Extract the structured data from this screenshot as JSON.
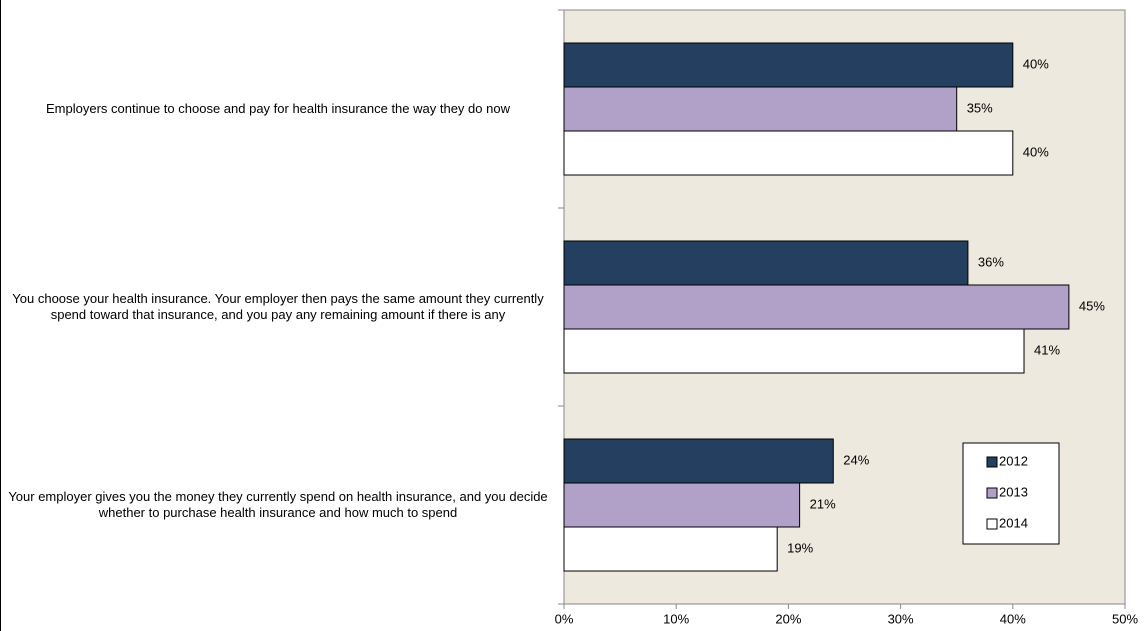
{
  "chart_data": {
    "type": "bar",
    "orientation": "horizontal",
    "categories": [
      "Employers continue to choose and pay for health insurance the way they do now",
      "You choose your health insurance. Your employer then pays the same amount they currently spend toward that insurance, and you pay any remaining amount if there is any",
      "Your employer gives you the money they currently spend on health insurance, and you decide whether to purchase health insurance and how much to spend"
    ],
    "series": [
      {
        "name": "2012",
        "color": "#253f60",
        "values": [
          40,
          36,
          24
        ],
        "value_labels": [
          "40%",
          "36%",
          "24%"
        ]
      },
      {
        "name": "2013",
        "color": "#b1a0c7",
        "values": [
          35,
          45,
          21
        ],
        "value_labels": [
          "35%",
          "45%",
          "21%"
        ]
      },
      {
        "name": "2014",
        "color": "#ffffff",
        "values": [
          40,
          41,
          19
        ],
        "value_labels": [
          "40%",
          "41%",
          "19%"
        ]
      }
    ],
    "xlim": [
      0,
      50
    ],
    "xticks": [
      {
        "value": 0,
        "label": "0%"
      },
      {
        "value": 10,
        "label": "10%"
      },
      {
        "value": 20,
        "label": "20%"
      },
      {
        "value": 30,
        "label": "30%"
      },
      {
        "value": 40,
        "label": "40%"
      },
      {
        "value": 50,
        "label": "50%"
      }
    ],
    "legend": "lower right",
    "plot_background": "#ede9de"
  }
}
